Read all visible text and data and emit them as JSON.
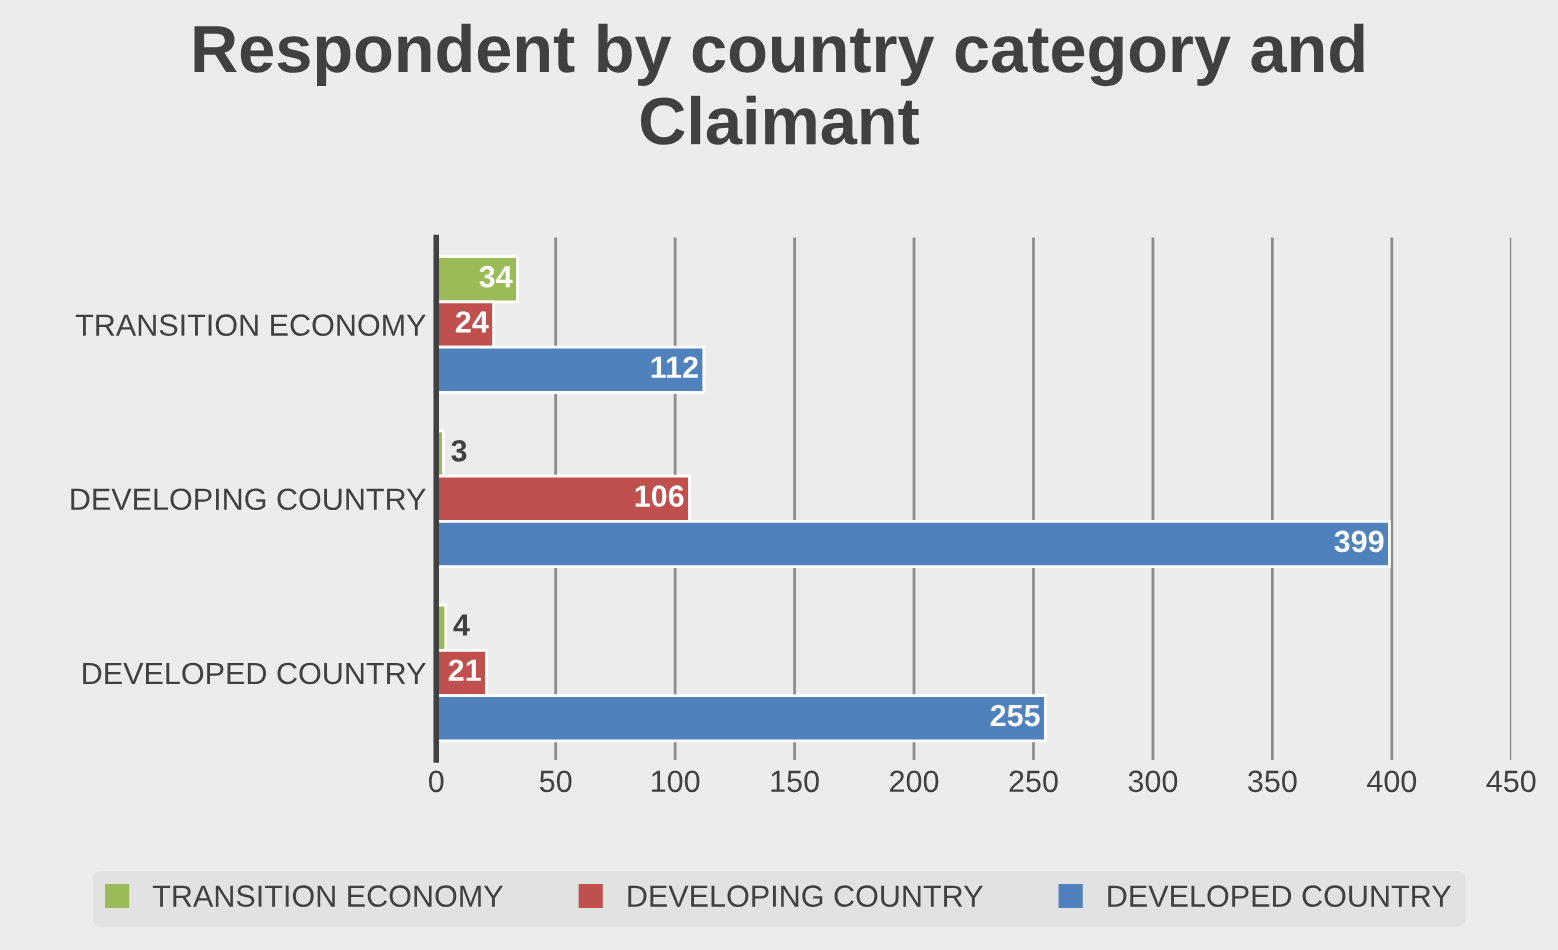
{
  "chart_data": {
    "type": "bar",
    "orientation": "horizontal",
    "title": "Respondent by country category and Claimant",
    "categories": [
      "TRANSITION ECONOMY",
      "DEVELOPING COUNTRY",
      "DEVELOPED COUNTRY"
    ],
    "series": [
      {
        "name": "TRANSITION ECONOMY",
        "color": "#9bbb59",
        "values": [
          34,
          3,
          4
        ]
      },
      {
        "name": "DEVELOPING COUNTRY",
        "color": "#c0504d",
        "values": [
          24,
          106,
          21
        ]
      },
      {
        "name": "DEVELOPED COUNTRY",
        "color": "#4f81bd",
        "values": [
          112,
          399,
          255
        ]
      }
    ],
    "xlim": [
      0,
      450
    ],
    "xticks": [
      0,
      50,
      100,
      150,
      200,
      250,
      300,
      350,
      400,
      450
    ],
    "grid": "x",
    "legend": "bottom",
    "data_labels": true
  }
}
